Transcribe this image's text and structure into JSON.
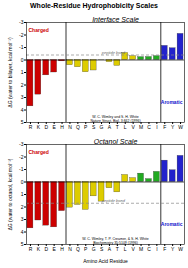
{
  "chart_data": [
    {
      "type": "bar",
      "title": "Whole-Residue Hydrophobicity Scales",
      "subtitle": "Interface Scale",
      "ylabel": "ΔG (water to bilayer, kcal mol⁻¹)",
      "categories": [
        "R",
        "K",
        "D",
        "E",
        "H",
        "N",
        "Q",
        "P",
        "S",
        "G",
        "A",
        "T",
        "L",
        "V",
        "M",
        "C",
        "I",
        "F",
        "Y",
        "W"
      ],
      "values": [
        3.71,
        2.77,
        1.23,
        1.0,
        0.11,
        0.42,
        0.58,
        0.98,
        0.84,
        0.01,
        0.17,
        0.47,
        -0.56,
        -0.31,
        -0.23,
        -0.24,
        -0.31,
        -1.13,
        -0.94,
        -2.09
      ],
      "colors": [
        "#cc0000",
        "#cc0000",
        "#cc0000",
        "#cc0000",
        "#cc0000",
        "#ddcc00",
        "#ddcc00",
        "#ddcc00",
        "#ddcc00",
        "#ddcc00",
        "#ddcc00",
        "#ddcc00",
        "#ddcc00",
        "#ddcc00",
        "#22aa22",
        "#22aa22",
        "#22aa22",
        "#2222cc",
        "#2222cc",
        "#2222cc"
      ],
      "ylim": [
        5,
        -3
      ],
      "yticks": [
        5,
        4,
        3,
        2,
        1,
        0,
        -1,
        -2,
        -3
      ],
      "separators": [
        "H",
        "I"
      ],
      "annotations": [
        {
          "text": "peptide bond",
          "y": -0.4,
          "line_style": "dashed",
          "color": "#666666"
        },
        {
          "text": "Aromatic",
          "color": "#1111cc"
        },
        {
          "text": "Charged",
          "color": "#cc0000"
        },
        {
          "text": "W. C. Wimley and S. H. White\nNature Struct. Biol. 3:842 (1996)"
        }
      ]
    },
    {
      "type": "bar",
      "subtitle": "Octanol Scale",
      "xlabel": "Amino Acid Residue",
      "ylabel": "ΔG (water to octanol, kcal mol⁻¹)",
      "categories": [
        "R",
        "K",
        "D",
        "E",
        "H",
        "N",
        "Q",
        "P",
        "G",
        "S",
        "A",
        "T",
        "L",
        "V",
        "M",
        "C",
        "I",
        "F",
        "Y",
        "W"
      ],
      "values": [
        3.71,
        3.08,
        3.49,
        3.63,
        2.33,
        2.05,
        1.84,
        2.23,
        1.15,
        1.57,
        0.5,
        0.83,
        -0.56,
        -0.31,
        -0.67,
        -0.23,
        -0.81,
        -1.71,
        -0.94,
        -2.09
      ],
      "colors": [
        "#cc0000",
        "#cc0000",
        "#cc0000",
        "#cc0000",
        "#cc0000",
        "#ddcc00",
        "#ddcc00",
        "#ddcc00",
        "#ddcc00",
        "#ddcc00",
        "#ddcc00",
        "#ddcc00",
        "#ddcc00",
        "#ddcc00",
        "#22aa22",
        "#22aa22",
        "#22aa22",
        "#2222cc",
        "#2222cc",
        "#2222cc"
      ],
      "ylim": [
        5,
        -3
      ],
      "yticks": [
        5,
        4,
        3,
        2,
        1,
        0,
        -1,
        -2,
        -3
      ],
      "separators": [
        "H",
        "I"
      ],
      "annotations": [
        {
          "text": "peptide bond",
          "y": 1.7,
          "line_style": "dashed",
          "color": "#666666"
        },
        {
          "text": "Aromatic",
          "color": "#1111cc"
        },
        {
          "text": "Charged",
          "color": "#cc0000"
        },
        {
          "text": "W. C. Wimley, T. P. Creamer, & S. H. White\nBiochemistry 35:5109 (1996)"
        }
      ]
    }
  ]
}
